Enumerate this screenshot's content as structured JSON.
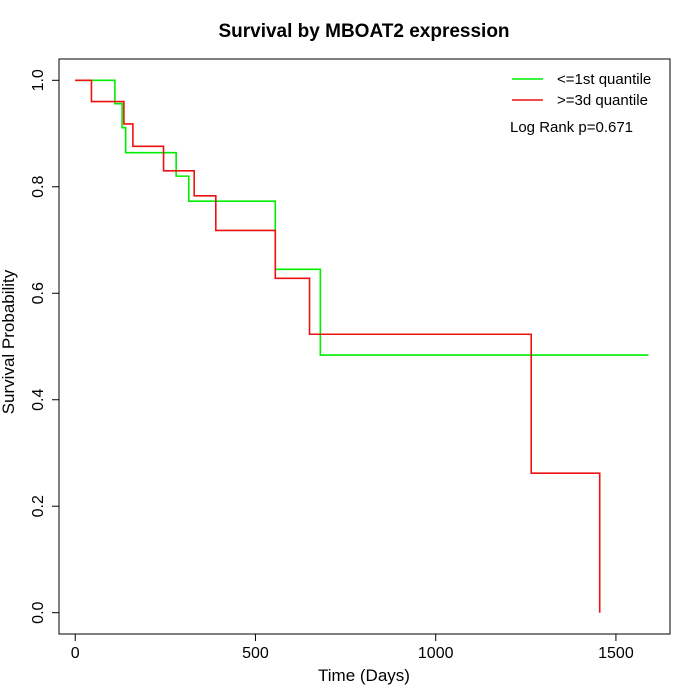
{
  "chart_data": {
    "type": "line",
    "step": true,
    "title": "Survival by MBOAT2 expression",
    "xlabel": "Time (Days)",
    "ylabel": "Survival Probability",
    "xlim": [
      -45,
      1650
    ],
    "ylim": [
      -0.04,
      1.04
    ],
    "xticks": [
      0,
      500,
      1000,
      1500
    ],
    "yticks": [
      0.0,
      0.2,
      0.4,
      0.6,
      0.8,
      1.0
    ],
    "xtick_labels": [
      "0",
      "500",
      "1000",
      "1500"
    ],
    "ytick_labels": [
      "0.0",
      "0.2",
      "0.4",
      "0.6",
      "0.8",
      "1.0"
    ],
    "grid": false,
    "legend_position": "top-right",
    "annotation": "Log Rank p=0.671",
    "series": [
      {
        "name": "<=1st quantile",
        "color": "#00ee00",
        "x": [
          0,
          110,
          130,
          140,
          280,
          315,
          555,
          680,
          1590
        ],
        "y": [
          1.0,
          0.956,
          0.911,
          0.864,
          0.82,
          0.773,
          0.645,
          0.484,
          0.484
        ]
      },
      {
        "name": ">=3d quantile",
        "color": "#ee1111",
        "x": [
          0,
          45,
          125,
          135,
          160,
          245,
          330,
          390,
          555,
          650,
          1265,
          1455
        ],
        "y": [
          1.0,
          0.96,
          0.96,
          0.918,
          0.876,
          0.83,
          0.783,
          0.718,
          0.628,
          0.523,
          0.262,
          0.0
        ]
      }
    ]
  }
}
